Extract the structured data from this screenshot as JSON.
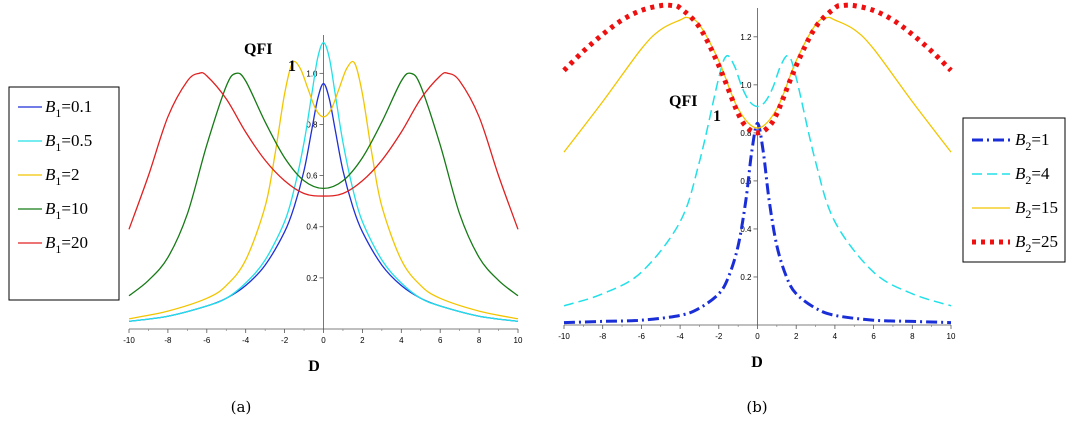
{
  "chart_data": [
    {
      "type": "line",
      "caption": "(a)",
      "xlabel": "D",
      "ylabel": "QFI",
      "ylabel_sub": "1",
      "xlim": [
        -10,
        10
      ],
      "ylim": [
        0,
        1.15
      ],
      "x_ticks": [
        -10,
        -8,
        -6,
        -4,
        -2,
        0,
        2,
        4,
        6,
        8,
        10
      ],
      "y_ticks": [
        0.2,
        0.4,
        0.6,
        0.8,
        1.0
      ],
      "legend_position": "left",
      "series": [
        {
          "name": "B",
          "sub": "1",
          "value": "=0.1",
          "color": "#1f2fd6",
          "dash": "",
          "x": [
            -10,
            -8,
            -6,
            -5,
            -4,
            -3,
            -2,
            -1.5,
            -1,
            -0.6,
            -0.3,
            0,
            0.3,
            0.6,
            1,
            1.5,
            2,
            3,
            4,
            5,
            6,
            8,
            10
          ],
          "y": [
            0.03,
            0.05,
            0.09,
            0.12,
            0.17,
            0.25,
            0.38,
            0.48,
            0.62,
            0.78,
            0.9,
            0.96,
            0.9,
            0.78,
            0.62,
            0.48,
            0.38,
            0.25,
            0.17,
            0.12,
            0.09,
            0.05,
            0.03
          ]
        },
        {
          "name": "B",
          "sub": "1",
          "value": "=0.5",
          "color": "#20e0e8",
          "dash": "",
          "x": [
            -10,
            -8,
            -6,
            -5,
            -4,
            -3,
            -2,
            -1.5,
            -1,
            -0.6,
            -0.3,
            0,
            0.3,
            0.6,
            1,
            1.5,
            2,
            3,
            4,
            5,
            6,
            8,
            10
          ],
          "y": [
            0.03,
            0.05,
            0.09,
            0.12,
            0.18,
            0.27,
            0.42,
            0.55,
            0.73,
            0.92,
            1.06,
            1.12,
            1.06,
            0.92,
            0.73,
            0.55,
            0.42,
            0.27,
            0.18,
            0.12,
            0.09,
            0.05,
            0.03
          ]
        },
        {
          "name": "B",
          "sub": "1",
          "value": "=2",
          "color": "#f2c500",
          "dash": "",
          "x": [
            -10,
            -8,
            -6,
            -5,
            -4,
            -3,
            -2.5,
            -2,
            -1.6,
            -1.2,
            -0.8,
            -0.4,
            0,
            0.4,
            0.8,
            1.2,
            1.6,
            2,
            2.5,
            3,
            4,
            5,
            6,
            8,
            10
          ],
          "y": [
            0.04,
            0.07,
            0.12,
            0.17,
            0.27,
            0.48,
            0.68,
            0.92,
            1.04,
            1.02,
            0.94,
            0.86,
            0.83,
            0.86,
            0.94,
            1.02,
            1.04,
            0.92,
            0.68,
            0.48,
            0.27,
            0.17,
            0.12,
            0.07,
            0.04
          ]
        },
        {
          "name": "B",
          "sub": "1",
          "value": "=10",
          "color": "#157a15",
          "dash": "",
          "x": [
            -10,
            -9,
            -8,
            -7,
            -6,
            -5,
            -4.5,
            -4,
            -3,
            -2,
            -1,
            0,
            1,
            2,
            3,
            4,
            4.5,
            5,
            6,
            7,
            8,
            9,
            10
          ],
          "y": [
            0.13,
            0.19,
            0.28,
            0.45,
            0.72,
            0.95,
            1.0,
            0.97,
            0.81,
            0.67,
            0.58,
            0.55,
            0.58,
            0.67,
            0.81,
            0.97,
            1.0,
            0.95,
            0.72,
            0.45,
            0.28,
            0.19,
            0.13
          ]
        },
        {
          "name": "B",
          "sub": "1",
          "value": "=20",
          "color": "#e02020",
          "dash": "",
          "x": [
            -10,
            -9,
            -8,
            -7,
            -6.4,
            -6,
            -5,
            -4,
            -3,
            -2,
            -1,
            0,
            1,
            2,
            3,
            4,
            5,
            6,
            6.4,
            7,
            8,
            9,
            10
          ],
          "y": [
            0.39,
            0.6,
            0.83,
            0.97,
            1.0,
            0.99,
            0.9,
            0.77,
            0.66,
            0.58,
            0.53,
            0.52,
            0.53,
            0.58,
            0.66,
            0.77,
            0.9,
            0.99,
            1.0,
            0.97,
            0.83,
            0.6,
            0.39
          ]
        }
      ]
    },
    {
      "type": "line",
      "caption": "(b)",
      "xlabel": "D",
      "ylabel": "QFI",
      "ylabel_sub": "1",
      "xlim": [
        -10,
        10
      ],
      "ylim": [
        0,
        1.32
      ],
      "x_ticks": [
        -10,
        -8,
        -6,
        -4,
        -2,
        0,
        2,
        4,
        6,
        8,
        10
      ],
      "y_ticks": [
        0.2,
        0.4,
        0.6,
        0.8,
        1.0,
        1.2
      ],
      "legend_position": "right",
      "series": [
        {
          "name": "B",
          "sub": "2",
          "value": "=1",
          "color": "#1a2ed8",
          "dash": "dashdot",
          "x": [
            -10,
            -8,
            -6,
            -4,
            -3,
            -2,
            -1.5,
            -1,
            -0.6,
            -0.3,
            0,
            0.3,
            0.6,
            1,
            1.5,
            2,
            3,
            4,
            6,
            8,
            10
          ],
          "y": [
            0.01,
            0.015,
            0.02,
            0.04,
            0.07,
            0.13,
            0.2,
            0.33,
            0.52,
            0.72,
            0.84,
            0.72,
            0.52,
            0.33,
            0.2,
            0.13,
            0.07,
            0.04,
            0.02,
            0.015,
            0.01
          ]
        },
        {
          "name": "B",
          "sub": "2",
          "value": "=4",
          "color": "#20e0e8",
          "dash": "dash",
          "x": [
            -10,
            -8,
            -6,
            -4,
            -3,
            -2,
            -1.6,
            -1.2,
            -0.8,
            -0.4,
            0,
            0.4,
            0.8,
            1.2,
            1.6,
            2,
            3,
            4,
            6,
            8,
            10
          ],
          "y": [
            0.08,
            0.13,
            0.22,
            0.43,
            0.68,
            1.03,
            1.12,
            1.08,
            0.99,
            0.93,
            0.91,
            0.93,
            0.99,
            1.08,
            1.12,
            1.03,
            0.68,
            0.43,
            0.22,
            0.13,
            0.08
          ]
        },
        {
          "name": "B",
          "sub": "2",
          "value": "=15",
          "color": "#f2c500",
          "dash": "",
          "x": [
            -10,
            -8,
            -6,
            -5,
            -4,
            -3.6,
            -3,
            -2,
            -1,
            0,
            1,
            2,
            3,
            3.6,
            4,
            5,
            6,
            8,
            10
          ],
          "y": [
            0.72,
            0.93,
            1.15,
            1.23,
            1.27,
            1.28,
            1.25,
            1.1,
            0.9,
            0.82,
            0.9,
            1.1,
            1.25,
            1.28,
            1.27,
            1.23,
            1.15,
            0.93,
            0.72
          ]
        },
        {
          "name": "B",
          "sub": "2",
          "value": "=25",
          "color": "#ee1010",
          "dash": "dot",
          "x": [
            -10,
            -9,
            -8,
            -7,
            -6,
            -5,
            -4.4,
            -4,
            -3,
            -2,
            -1,
            -0.5,
            0,
            0.5,
            1,
            2,
            3,
            4,
            4.4,
            5,
            6,
            7,
            8,
            9,
            10
          ],
          "y": [
            1.06,
            1.14,
            1.21,
            1.27,
            1.31,
            1.33,
            1.33,
            1.32,
            1.24,
            1.08,
            0.88,
            0.82,
            0.8,
            0.82,
            0.88,
            1.08,
            1.24,
            1.32,
            1.33,
            1.33,
            1.31,
            1.27,
            1.21,
            1.14,
            1.06
          ]
        }
      ]
    }
  ]
}
